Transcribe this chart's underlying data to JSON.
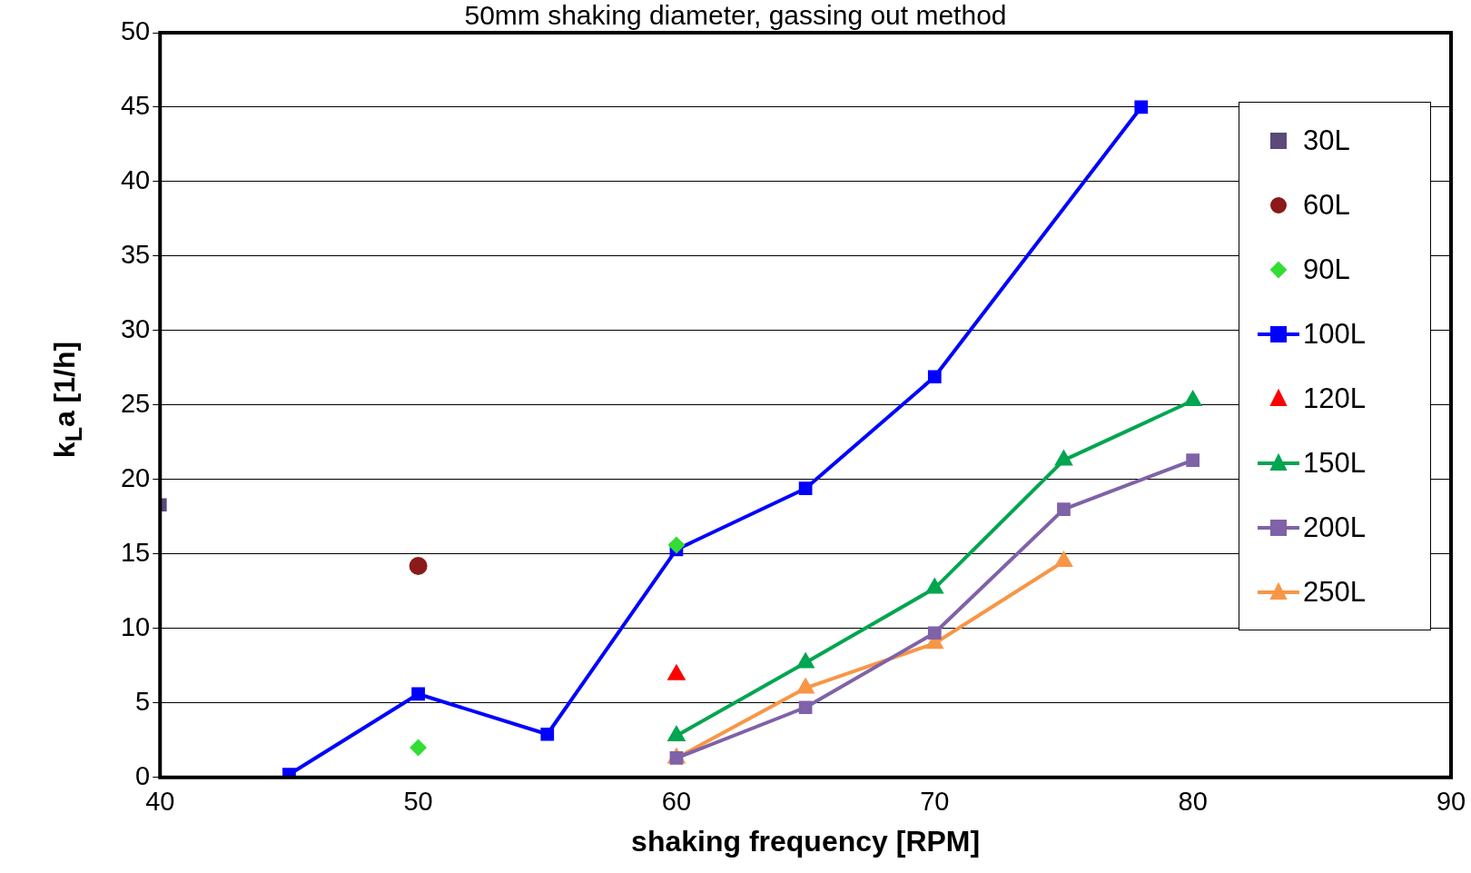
{
  "chart_data": {
    "type": "line",
    "title": "50mm shaking diameter, gassing out method",
    "xlabel": "shaking frequency [RPM]",
    "ylabel": "k$_{L}$a [1/h]",
    "xlim": [
      40,
      90
    ],
    "xticks": [
      40,
      50,
      60,
      70,
      80,
      90
    ],
    "ylim": [
      0,
      50
    ],
    "yticks": [
      0,
      5,
      10,
      15,
      20,
      25,
      30,
      35,
      40,
      45,
      50
    ],
    "grid": "y",
    "legend": "right",
    "series": [
      {
        "name": "30L",
        "type": "scatter",
        "marker": "square",
        "color": "#5b4a7a",
        "x": [
          40
        ],
        "values": [
          18.3
        ]
      },
      {
        "name": "60L",
        "type": "scatter",
        "marker": "circle",
        "color": "#8b1a1a",
        "x": [
          50
        ],
        "values": [
          14.2
        ]
      },
      {
        "name": "90L",
        "type": "scatter",
        "marker": "diamond",
        "color": "#33dd33",
        "x": [
          50,
          60
        ],
        "values": [
          2.0,
          15.6
        ]
      },
      {
        "name": "100L",
        "marker": "square",
        "color": "#0000ff",
        "x": [
          45,
          50,
          55,
          60,
          65,
          70,
          78
        ],
        "values": [
          0.2,
          5.6,
          2.9,
          15.3,
          19.4,
          26.9,
          45.0
        ]
      },
      {
        "name": "120L",
        "type": "scatter",
        "marker": "triangle",
        "color": "#ff0000",
        "x": [
          60
        ],
        "values": [
          6.9
        ]
      },
      {
        "name": "150L",
        "marker": "triangle",
        "color": "#00a550",
        "x": [
          60,
          65,
          70,
          75,
          80
        ],
        "values": [
          2.8,
          7.7,
          12.7,
          21.3,
          25.3
        ]
      },
      {
        "name": "200L",
        "marker": "square",
        "color": "#7f62a8",
        "x": [
          60,
          65,
          70,
          75,
          80
        ],
        "values": [
          1.3,
          4.7,
          9.7,
          18.0,
          21.3
        ]
      },
      {
        "name": "250L",
        "marker": "triangle",
        "color": "#f79646",
        "x": [
          60,
          65,
          70,
          75
        ],
        "values": [
          1.3,
          6.0,
          9.0,
          14.5
        ]
      }
    ]
  }
}
